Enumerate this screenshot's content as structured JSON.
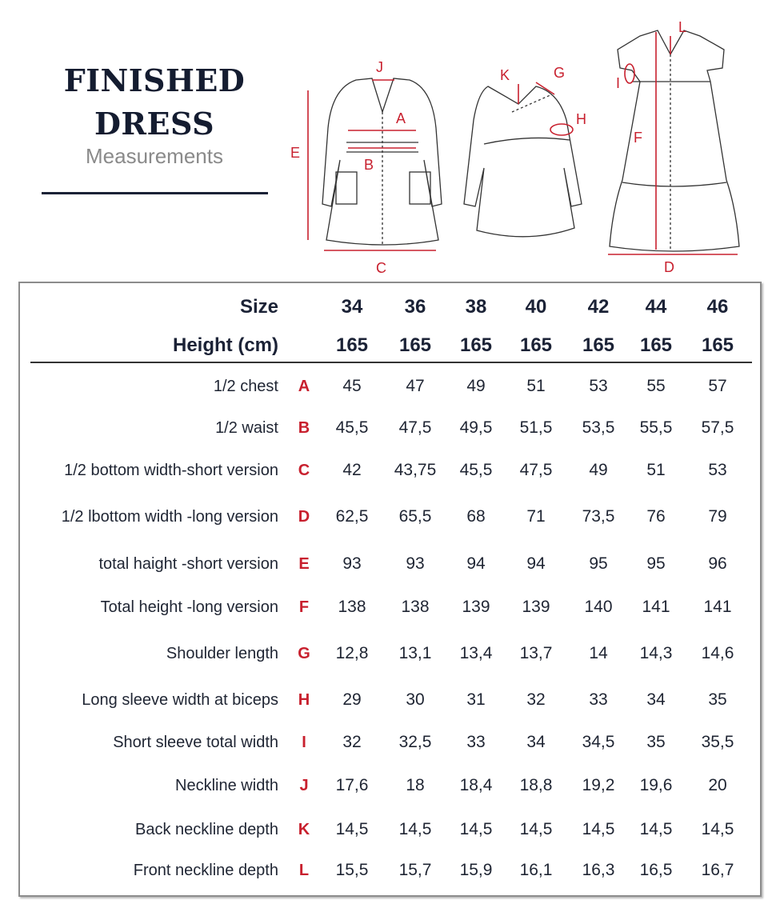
{
  "heading": {
    "title_line1": "FINISHED",
    "title_line2": "DRESS",
    "subtitle": "Measurements"
  },
  "diagram": {
    "labels": [
      "A",
      "B",
      "C",
      "D",
      "E",
      "F",
      "G",
      "H",
      "I",
      "J",
      "K",
      "L"
    ],
    "accent_color": "#c8202e"
  },
  "table": {
    "size_label": "Size",
    "height_label": "Height (cm)",
    "sizes": [
      "34",
      "36",
      "38",
      "40",
      "42",
      "44",
      "46"
    ],
    "heights": [
      "165",
      "165",
      "165",
      "165",
      "165",
      "165",
      "165"
    ],
    "rows": [
      {
        "label": "1/2 chest",
        "letter": "A",
        "values": [
          "45",
          "47",
          "49",
          "51",
          "53",
          "55",
          "57"
        ]
      },
      {
        "label": "1/2 waist",
        "letter": "B",
        "values": [
          "45,5",
          "47,5",
          "49,5",
          "51,5",
          "53,5",
          "55,5",
          "57,5"
        ]
      },
      {
        "label": "1/2 bottom width-short version",
        "letter": "C",
        "values": [
          "42",
          "43,75",
          "45,5",
          "47,5",
          "49",
          "51",
          "53"
        ]
      },
      {
        "label": "1/2 lbottom width -long version",
        "letter": "D",
        "values": [
          "62,5",
          "65,5",
          "68",
          "71",
          "73,5",
          "76",
          "79"
        ]
      },
      {
        "label": "total haight -short version",
        "letter": "E",
        "values": [
          "93",
          "93",
          "94",
          "94",
          "95",
          "95",
          "96"
        ]
      },
      {
        "label": "Total height -long version",
        "letter": "F",
        "values": [
          "138",
          "138",
          "139",
          "139",
          "140",
          "141",
          "141"
        ]
      },
      {
        "label": "Shoulder length",
        "letter": "G",
        "values": [
          "12,8",
          "13,1",
          "13,4",
          "13,7",
          "14",
          "14,3",
          "14,6"
        ]
      },
      {
        "label": "Long sleeve width at biceps",
        "letter": "H",
        "values": [
          "29",
          "30",
          "31",
          "32",
          "33",
          "34",
          "35"
        ]
      },
      {
        "label": "Short sleeve total width",
        "letter": "I",
        "values": [
          "32",
          "32,5",
          "33",
          "34",
          "34,5",
          "35",
          "35,5"
        ]
      },
      {
        "label": "Neckline width",
        "letter": "J",
        "values": [
          "17,6",
          "18",
          "18,4",
          "18,8",
          "19,2",
          "19,6",
          "20"
        ]
      },
      {
        "label": "Back neckline depth",
        "letter": "K",
        "values": [
          "14,5",
          "14,5",
          "14,5",
          "14,5",
          "14,5",
          "14,5",
          "14,5"
        ]
      },
      {
        "label": "Front neckline depth",
        "letter": "L",
        "values": [
          "15,5",
          "15,7",
          "15,9",
          "16,1",
          "16,3",
          "16,5",
          "16,7"
        ]
      }
    ]
  }
}
